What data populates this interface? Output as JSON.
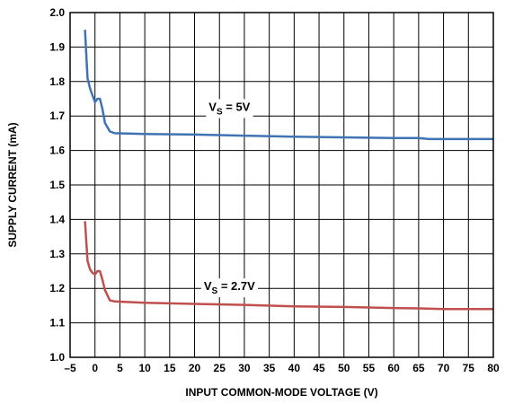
{
  "chart_data": {
    "type": "line",
    "title": "",
    "xlabel": "INPUT COMMON-MODE VOLTAGE (V)",
    "ylabel": "SUPPLY CURRENT (mA)",
    "xlim": [
      -5,
      80
    ],
    "ylim": [
      1.0,
      2.0
    ],
    "grid": true,
    "x_ticks": [
      "–5",
      "0",
      "5",
      "10",
      "15",
      "20",
      "25",
      "30",
      "35",
      "40",
      "45",
      "50",
      "55",
      "60",
      "65",
      "70",
      "75",
      "80"
    ],
    "y_ticks": [
      "1.0",
      "1.1",
      "1.2",
      "1.3",
      "1.4",
      "1.5",
      "1.6",
      "1.7",
      "1.8",
      "1.9",
      "2.0"
    ],
    "series": [
      {
        "label_main": "V",
        "label_sub": "S",
        "label_rest": " = 5V",
        "color": "#3f73b3",
        "label_at": [
          27,
          1.715
        ],
        "points": [
          [
            -2,
            1.95
          ],
          [
            -1.5,
            1.81
          ],
          [
            -1,
            1.78
          ],
          [
            -0.5,
            1.76
          ],
          [
            0,
            1.74
          ],
          [
            0.5,
            1.75
          ],
          [
            1,
            1.75
          ],
          [
            1.5,
            1.72
          ],
          [
            2,
            1.68
          ],
          [
            3,
            1.655
          ],
          [
            4,
            1.65
          ],
          [
            10,
            1.648
          ],
          [
            20,
            1.646
          ],
          [
            30,
            1.643
          ],
          [
            40,
            1.64
          ],
          [
            50,
            1.638
          ],
          [
            60,
            1.636
          ],
          [
            65,
            1.636
          ],
          [
            67,
            1.633
          ],
          [
            80,
            1.633
          ]
        ]
      },
      {
        "label_main": "V",
        "label_sub": "S",
        "label_rest": " = 2.7V",
        "color": "#c0504d",
        "label_at": [
          27,
          1.195
        ],
        "points": [
          [
            -2,
            1.395
          ],
          [
            -1.5,
            1.28
          ],
          [
            -1,
            1.255
          ],
          [
            -0.5,
            1.245
          ],
          [
            0,
            1.24
          ],
          [
            0.5,
            1.25
          ],
          [
            1,
            1.25
          ],
          [
            1.5,
            1.225
          ],
          [
            2,
            1.195
          ],
          [
            3,
            1.165
          ],
          [
            4,
            1.162
          ],
          [
            10,
            1.158
          ],
          [
            20,
            1.155
          ],
          [
            30,
            1.152
          ],
          [
            40,
            1.148
          ],
          [
            50,
            1.146
          ],
          [
            60,
            1.143
          ],
          [
            65,
            1.142
          ],
          [
            70,
            1.14
          ],
          [
            80,
            1.14
          ]
        ]
      }
    ]
  }
}
